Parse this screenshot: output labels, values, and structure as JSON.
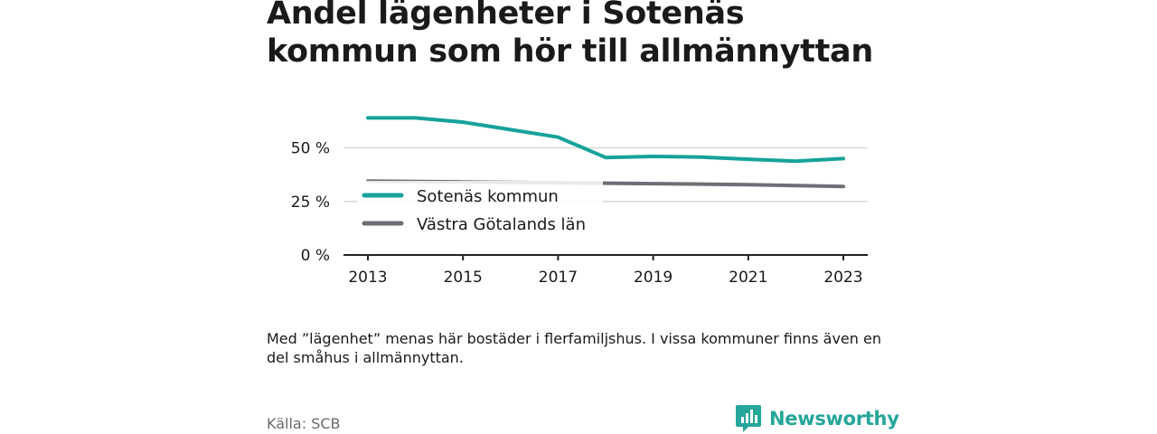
{
  "title": "Andel lägenheter i Sotenäs kommun som hör till allmännyttan",
  "note": "Med ”lägenhet” menas här bostäder i flerfamiljshus. I vissa kommuner finns även en del småhus i allmännyttan.",
  "source": "Källa: SCB",
  "brand": {
    "name": "Newsworthy",
    "icon": "newsworthy-logo-icon"
  },
  "colors": {
    "sotenas": "#16a29a",
    "vastra": "#6e6e76",
    "grid": "#d9d9d9",
    "axis": "#222222"
  },
  "chart_data": {
    "type": "line",
    "title": "Andel lägenheter i Sotenäs kommun som hör till allmännyttan",
    "x": [
      2013,
      2014,
      2015,
      2016,
      2017,
      2018,
      2019,
      2020,
      2021,
      2022,
      2023
    ],
    "x_ticks": [
      2013,
      2015,
      2017,
      2019,
      2021,
      2023
    ],
    "x_tick_labels": [
      "2013",
      "2015",
      "2017",
      "2019",
      "2021",
      "2023"
    ],
    "y_ticks": [
      0,
      25,
      50
    ],
    "y_tick_labels": [
      "0 %",
      "25 %",
      "50 %"
    ],
    "ylim": [
      0,
      65
    ],
    "grid": true,
    "legend_position": "middle-left",
    "series": [
      {
        "name": "Sotenäs kommun",
        "color": "#16a29a",
        "values": [
          64,
          64,
          62,
          58.5,
          55,
          45.5,
          46,
          45.7,
          44.7,
          43.8,
          45
        ]
      },
      {
        "name": "Västra Götalands län",
        "color": "#6e6e76",
        "values": [
          34.5,
          34.3,
          34.1,
          33.9,
          33.7,
          33.5,
          33.3,
          33.1,
          32.8,
          32.4,
          32
        ]
      }
    ]
  }
}
